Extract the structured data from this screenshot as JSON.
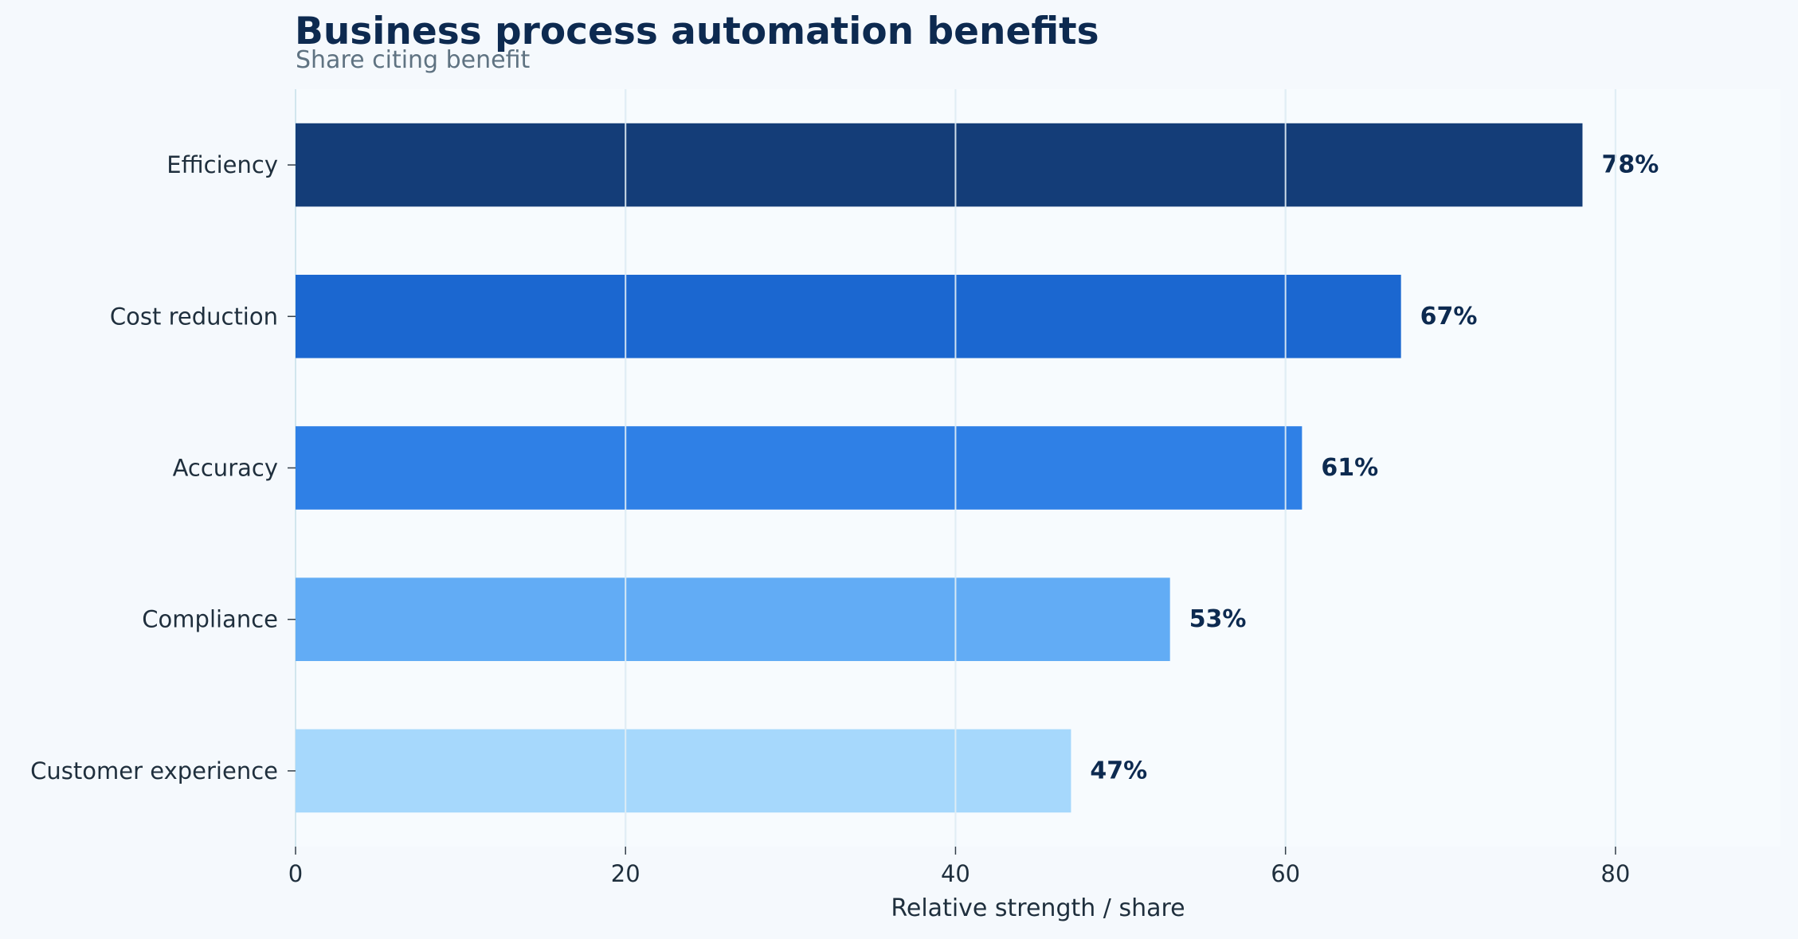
{
  "chart_data": {
    "type": "bar",
    "orientation": "horizontal",
    "title": "Business process automation benefits",
    "subtitle": "Share citing benefit",
    "xlabel": "Relative strength / share",
    "ylabel": "",
    "xlim": [
      0,
      90
    ],
    "x_ticks": [
      0,
      20,
      40,
      60,
      80
    ],
    "grid": "vertical",
    "categories": [
      "Efficiency",
      "Cost reduction",
      "Accuracy",
      "Compliance",
      "Customer experience"
    ],
    "values": [
      78,
      67,
      61,
      53,
      47
    ],
    "value_labels": [
      "78%",
      "67%",
      "61%",
      "53%",
      "47%"
    ],
    "colors": [
      "#143d78",
      "#1b67d0",
      "#2f80e6",
      "#62acf5",
      "#a6d8fc"
    ]
  }
}
